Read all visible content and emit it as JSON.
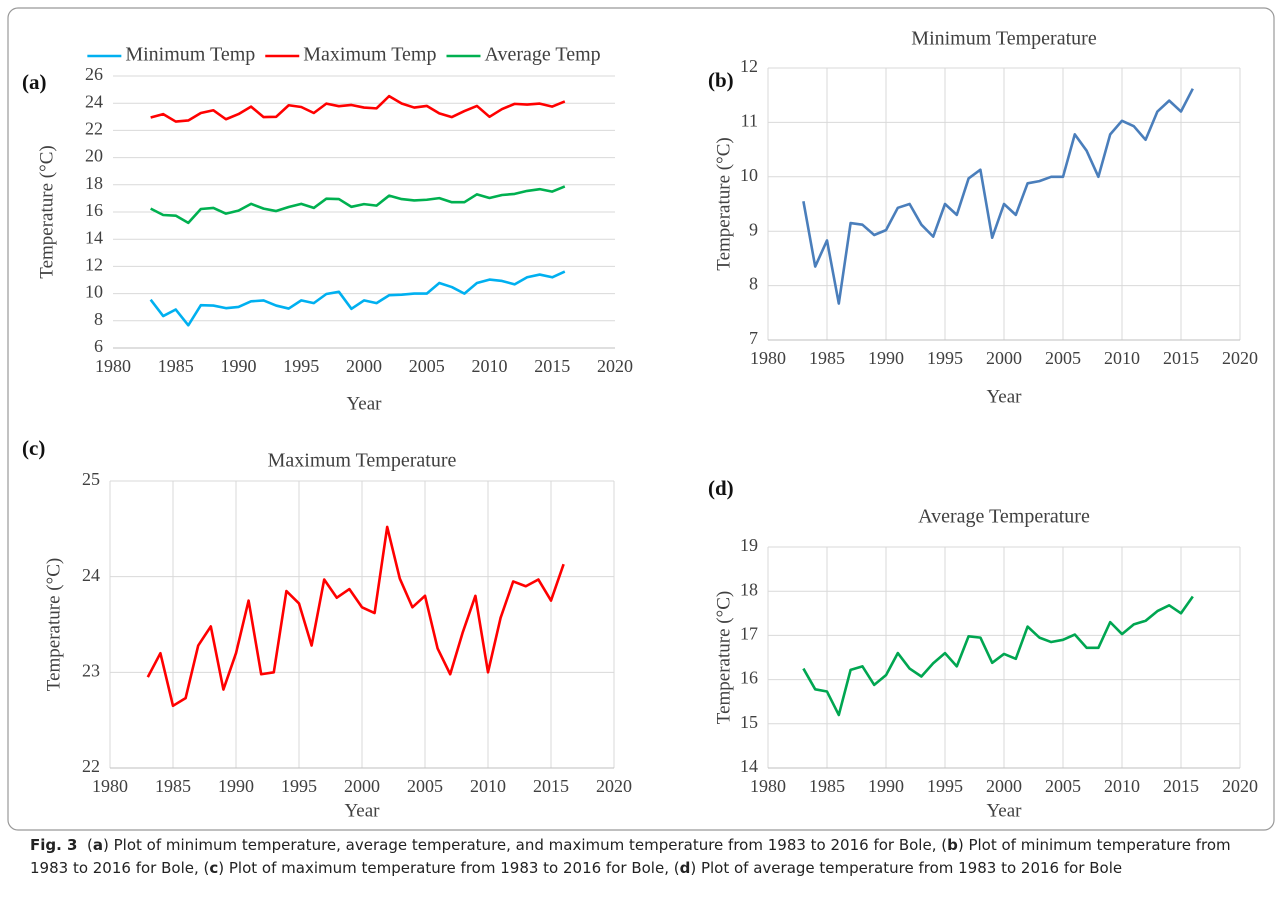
{
  "chart_data": [
    {
      "type": "line",
      "panel": "(a)",
      "ylabel": "Temperature (°C)",
      "xlabel": "Year",
      "x": [
        1983,
        1984,
        1985,
        1986,
        1987,
        1988,
        1989,
        1990,
        1991,
        1992,
        1993,
        1994,
        1995,
        1996,
        1997,
        1998,
        1999,
        2000,
        2001,
        2002,
        2003,
        2004,
        2005,
        2006,
        2007,
        2008,
        2009,
        2010,
        2011,
        2012,
        2013,
        2014,
        2015,
        2016
      ],
      "series": [
        {
          "name": "Minimum Temp",
          "color": "#00b0f0",
          "values": [
            9.55,
            8.35,
            8.83,
            7.67,
            9.15,
            9.12,
            8.93,
            9.02,
            9.43,
            9.5,
            9.12,
            8.9,
            9.5,
            9.3,
            9.97,
            10.13,
            8.88,
            9.5,
            9.3,
            9.88,
            9.92,
            10.0,
            10.0,
            10.78,
            10.48,
            10.0,
            10.78,
            11.03,
            10.93,
            10.68,
            11.2,
            11.4,
            11.2,
            11.62
          ]
        },
        {
          "name": "Maximum Temp",
          "color": "#ff0000",
          "values": [
            22.95,
            23.2,
            22.65,
            22.73,
            23.28,
            23.48,
            22.82,
            23.2,
            23.75,
            22.98,
            23.0,
            23.85,
            23.72,
            23.28,
            23.97,
            23.78,
            23.87,
            23.68,
            23.62,
            24.52,
            23.98,
            23.68,
            23.8,
            23.25,
            22.98,
            23.42,
            23.8,
            23.0,
            23.57,
            23.95,
            23.9,
            23.97,
            23.75,
            24.13
          ]
        },
        {
          "name": "Average Temp",
          "color": "#00b050",
          "values": [
            16.25,
            15.78,
            15.73,
            15.2,
            16.22,
            16.3,
            15.88,
            16.1,
            16.6,
            16.25,
            16.07,
            16.37,
            16.6,
            16.3,
            16.98,
            16.95,
            16.38,
            16.58,
            16.47,
            17.2,
            16.95,
            16.85,
            16.9,
            17.02,
            16.72,
            16.72,
            17.3,
            17.03,
            17.25,
            17.33,
            17.55,
            17.68,
            17.5,
            17.88
          ]
        }
      ],
      "xlim": [
        1980,
        2020
      ],
      "xticks": [
        1980,
        1985,
        1990,
        1995,
        2000,
        2005,
        2010,
        2015,
        2020
      ],
      "ylim": [
        6,
        26
      ],
      "yticks": [
        6,
        8,
        10,
        12,
        14,
        16,
        18,
        20,
        22,
        24,
        26
      ],
      "grid": "y",
      "legend": "top"
    },
    {
      "type": "line",
      "panel": "(b)",
      "title": "Minimum Temperature",
      "ylabel": "Temperature (°C)",
      "xlabel": "Year",
      "x": [
        1983,
        1984,
        1985,
        1986,
        1987,
        1988,
        1989,
        1990,
        1991,
        1992,
        1993,
        1994,
        1995,
        1996,
        1997,
        1998,
        1999,
        2000,
        2001,
        2002,
        2003,
        2004,
        2005,
        2006,
        2007,
        2008,
        2009,
        2010,
        2011,
        2012,
        2013,
        2014,
        2015,
        2016
      ],
      "values": [
        9.55,
        8.35,
        8.83,
        7.67,
        9.15,
        9.12,
        8.93,
        9.02,
        9.43,
        9.5,
        9.12,
        8.9,
        9.5,
        9.3,
        9.97,
        10.13,
        8.88,
        9.5,
        9.3,
        9.88,
        9.92,
        10.0,
        10.0,
        10.78,
        10.48,
        10.0,
        10.78,
        11.03,
        10.93,
        10.68,
        11.2,
        11.4,
        11.2,
        11.62
      ],
      "color": "#4a7ebb",
      "xlim": [
        1980,
        2020
      ],
      "xticks": [
        1980,
        1985,
        1990,
        1995,
        2000,
        2005,
        2010,
        2015,
        2020
      ],
      "ylim": [
        7,
        12
      ],
      "yticks": [
        7,
        8,
        9,
        10,
        11,
        12
      ],
      "grid": "both"
    },
    {
      "type": "line",
      "panel": "(c)",
      "title": "Maximum Temperature",
      "ylabel": "Temperature (°C)",
      "xlabel": "Year",
      "x": [
        1983,
        1984,
        1985,
        1986,
        1987,
        1988,
        1989,
        1990,
        1991,
        1992,
        1993,
        1994,
        1995,
        1996,
        1997,
        1998,
        1999,
        2000,
        2001,
        2002,
        2003,
        2004,
        2005,
        2006,
        2007,
        2008,
        2009,
        2010,
        2011,
        2012,
        2013,
        2014,
        2015,
        2016
      ],
      "values": [
        22.95,
        23.2,
        22.65,
        22.73,
        23.28,
        23.48,
        22.82,
        23.2,
        23.75,
        22.98,
        23.0,
        23.85,
        23.72,
        23.28,
        23.97,
        23.78,
        23.87,
        23.68,
        23.62,
        24.52,
        23.98,
        23.68,
        23.8,
        23.25,
        22.98,
        23.42,
        23.8,
        23.0,
        23.57,
        23.95,
        23.9,
        23.97,
        23.75,
        24.13
      ],
      "color": "#ff0000",
      "xlim": [
        1980,
        2020
      ],
      "xticks": [
        1980,
        1985,
        1990,
        1995,
        2000,
        2005,
        2010,
        2015,
        2020
      ],
      "ylim": [
        22,
        25
      ],
      "yticks": [
        22,
        23,
        24,
        25
      ],
      "grid": "both"
    },
    {
      "type": "line",
      "panel": "(d)",
      "title": "Average Temperature",
      "ylabel": "Temperature (°C)",
      "xlabel": "Year",
      "x": [
        1983,
        1984,
        1985,
        1986,
        1987,
        1988,
        1989,
        1990,
        1991,
        1992,
        1993,
        1994,
        1995,
        1996,
        1997,
        1998,
        1999,
        2000,
        2001,
        2002,
        2003,
        2004,
        2005,
        2006,
        2007,
        2008,
        2009,
        2010,
        2011,
        2012,
        2013,
        2014,
        2015,
        2016
      ],
      "values": [
        16.25,
        15.78,
        15.73,
        15.2,
        16.22,
        16.3,
        15.88,
        16.1,
        16.6,
        16.25,
        16.07,
        16.37,
        16.6,
        16.3,
        16.98,
        16.95,
        16.38,
        16.58,
        16.47,
        17.2,
        16.95,
        16.85,
        16.9,
        17.02,
        16.72,
        16.72,
        17.3,
        17.03,
        17.25,
        17.33,
        17.55,
        17.68,
        17.5,
        17.88
      ],
      "color": "#00a651",
      "xlim": [
        1980,
        2020
      ],
      "xticks": [
        1980,
        1985,
        1990,
        1995,
        2000,
        2005,
        2010,
        2015,
        2020
      ],
      "ylim": [
        14,
        19
      ],
      "yticks": [
        14,
        15,
        16,
        17,
        18,
        19
      ],
      "grid": "both"
    }
  ],
  "caption": {
    "label": "Fig. 3",
    "parts": [
      "(",
      "a",
      ") Plot of minimum temperature, average temperature, and maximum temperature from 1983 to 2016 for Bole, (",
      "b",
      ") Plot of minimum temperature from 1983 to 2016 for Bole, (",
      "c",
      ") Plot of maximum temperature from 1983 to 2016 for Bole, (",
      "d",
      ") Plot of average temperature from 1983 to 2016 for Bole"
    ]
  }
}
